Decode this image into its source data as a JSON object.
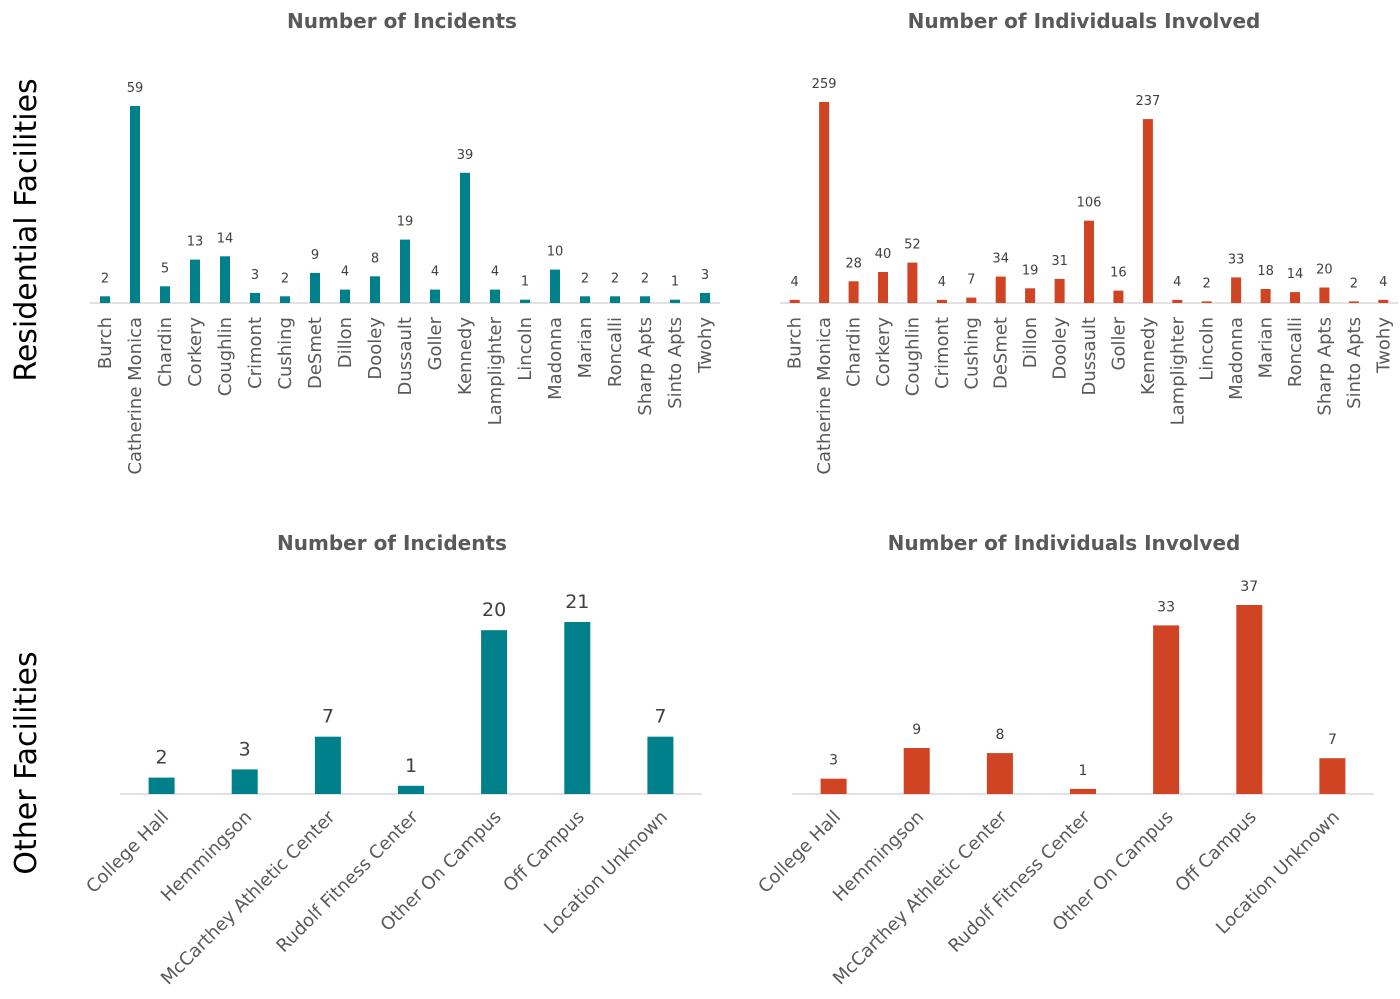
{
  "row_labels": {
    "top": "Residential Facilities",
    "bottom": "Other Facilities"
  },
  "colors": {
    "teal": "#00808a",
    "orange": "#d04424",
    "axis": "#d9d9d9",
    "text": "#595959"
  },
  "chart_data": [
    {
      "type": "bar",
      "title": "Number of Incidents",
      "xlabel": "",
      "ylabel": "",
      "color": "#00808a",
      "categories": [
        "Burch",
        "Catherine Monica",
        "Chardin",
        "Corkery",
        "Coughlin",
        "Crimont",
        "Cushing",
        "DeSmet",
        "Dillon",
        "Dooley",
        "Dussault",
        "Goller",
        "Kennedy",
        "Lamplighter",
        "Lincoln",
        "Madonna",
        "Marian",
        "Roncalli",
        "Sharp Apts",
        "Sinto Apts",
        "Twohy"
      ],
      "values": [
        2,
        59,
        5,
        13,
        14,
        3,
        2,
        9,
        4,
        8,
        19,
        4,
        39,
        4,
        1,
        10,
        2,
        2,
        2,
        1,
        3
      ],
      "ylim": [
        0,
        59
      ],
      "grid": false,
      "legend": "none"
    },
    {
      "type": "bar",
      "title": "Number of Individuals Involved",
      "xlabel": "",
      "ylabel": "",
      "color": "#d04424",
      "categories": [
        "Burch",
        "Catherine Monica",
        "Chardin",
        "Corkery",
        "Coughlin",
        "Crimont",
        "Cushing",
        "DeSmet",
        "Dillon",
        "Dooley",
        "Dussault",
        "Goller",
        "Kennedy",
        "Lamplighter",
        "Lincoln",
        "Madonna",
        "Marian",
        "Roncalli",
        "Sharp Apts",
        "Sinto Apts",
        "Twohy"
      ],
      "values": [
        4,
        259,
        28,
        40,
        52,
        4,
        7,
        34,
        19,
        31,
        106,
        16,
        237,
        4,
        2,
        33,
        18,
        14,
        20,
        2,
        4
      ],
      "ylim": [
        0,
        259
      ],
      "grid": false,
      "legend": "none"
    },
    {
      "type": "bar",
      "title": "Number of Incidents",
      "xlabel": "",
      "ylabel": "",
      "color": "#00808a",
      "categories": [
        "College Hall",
        "Hemmingson",
        "McCarthey Athletic Center",
        "Rudolf Fitness Center",
        "Other On Campus",
        "Off Campus",
        "Location Unknown"
      ],
      "values": [
        2,
        3,
        7,
        1,
        20,
        21,
        7
      ],
      "ylim": [
        0,
        21
      ],
      "grid": false,
      "legend": "none"
    },
    {
      "type": "bar",
      "title": "Number of Individuals Involved",
      "xlabel": "",
      "ylabel": "",
      "color": "#d04424",
      "categories": [
        "College Hall",
        "Hemmingson",
        "McCarthey Athletic Center",
        "Rudolf Fitness Center",
        "Other On Campus",
        "Off Campus",
        "Location Unknown"
      ],
      "values": [
        3,
        9,
        8,
        1,
        33,
        37,
        7
      ],
      "ylim": [
        0,
        37
      ],
      "grid": false,
      "legend": "none"
    }
  ]
}
